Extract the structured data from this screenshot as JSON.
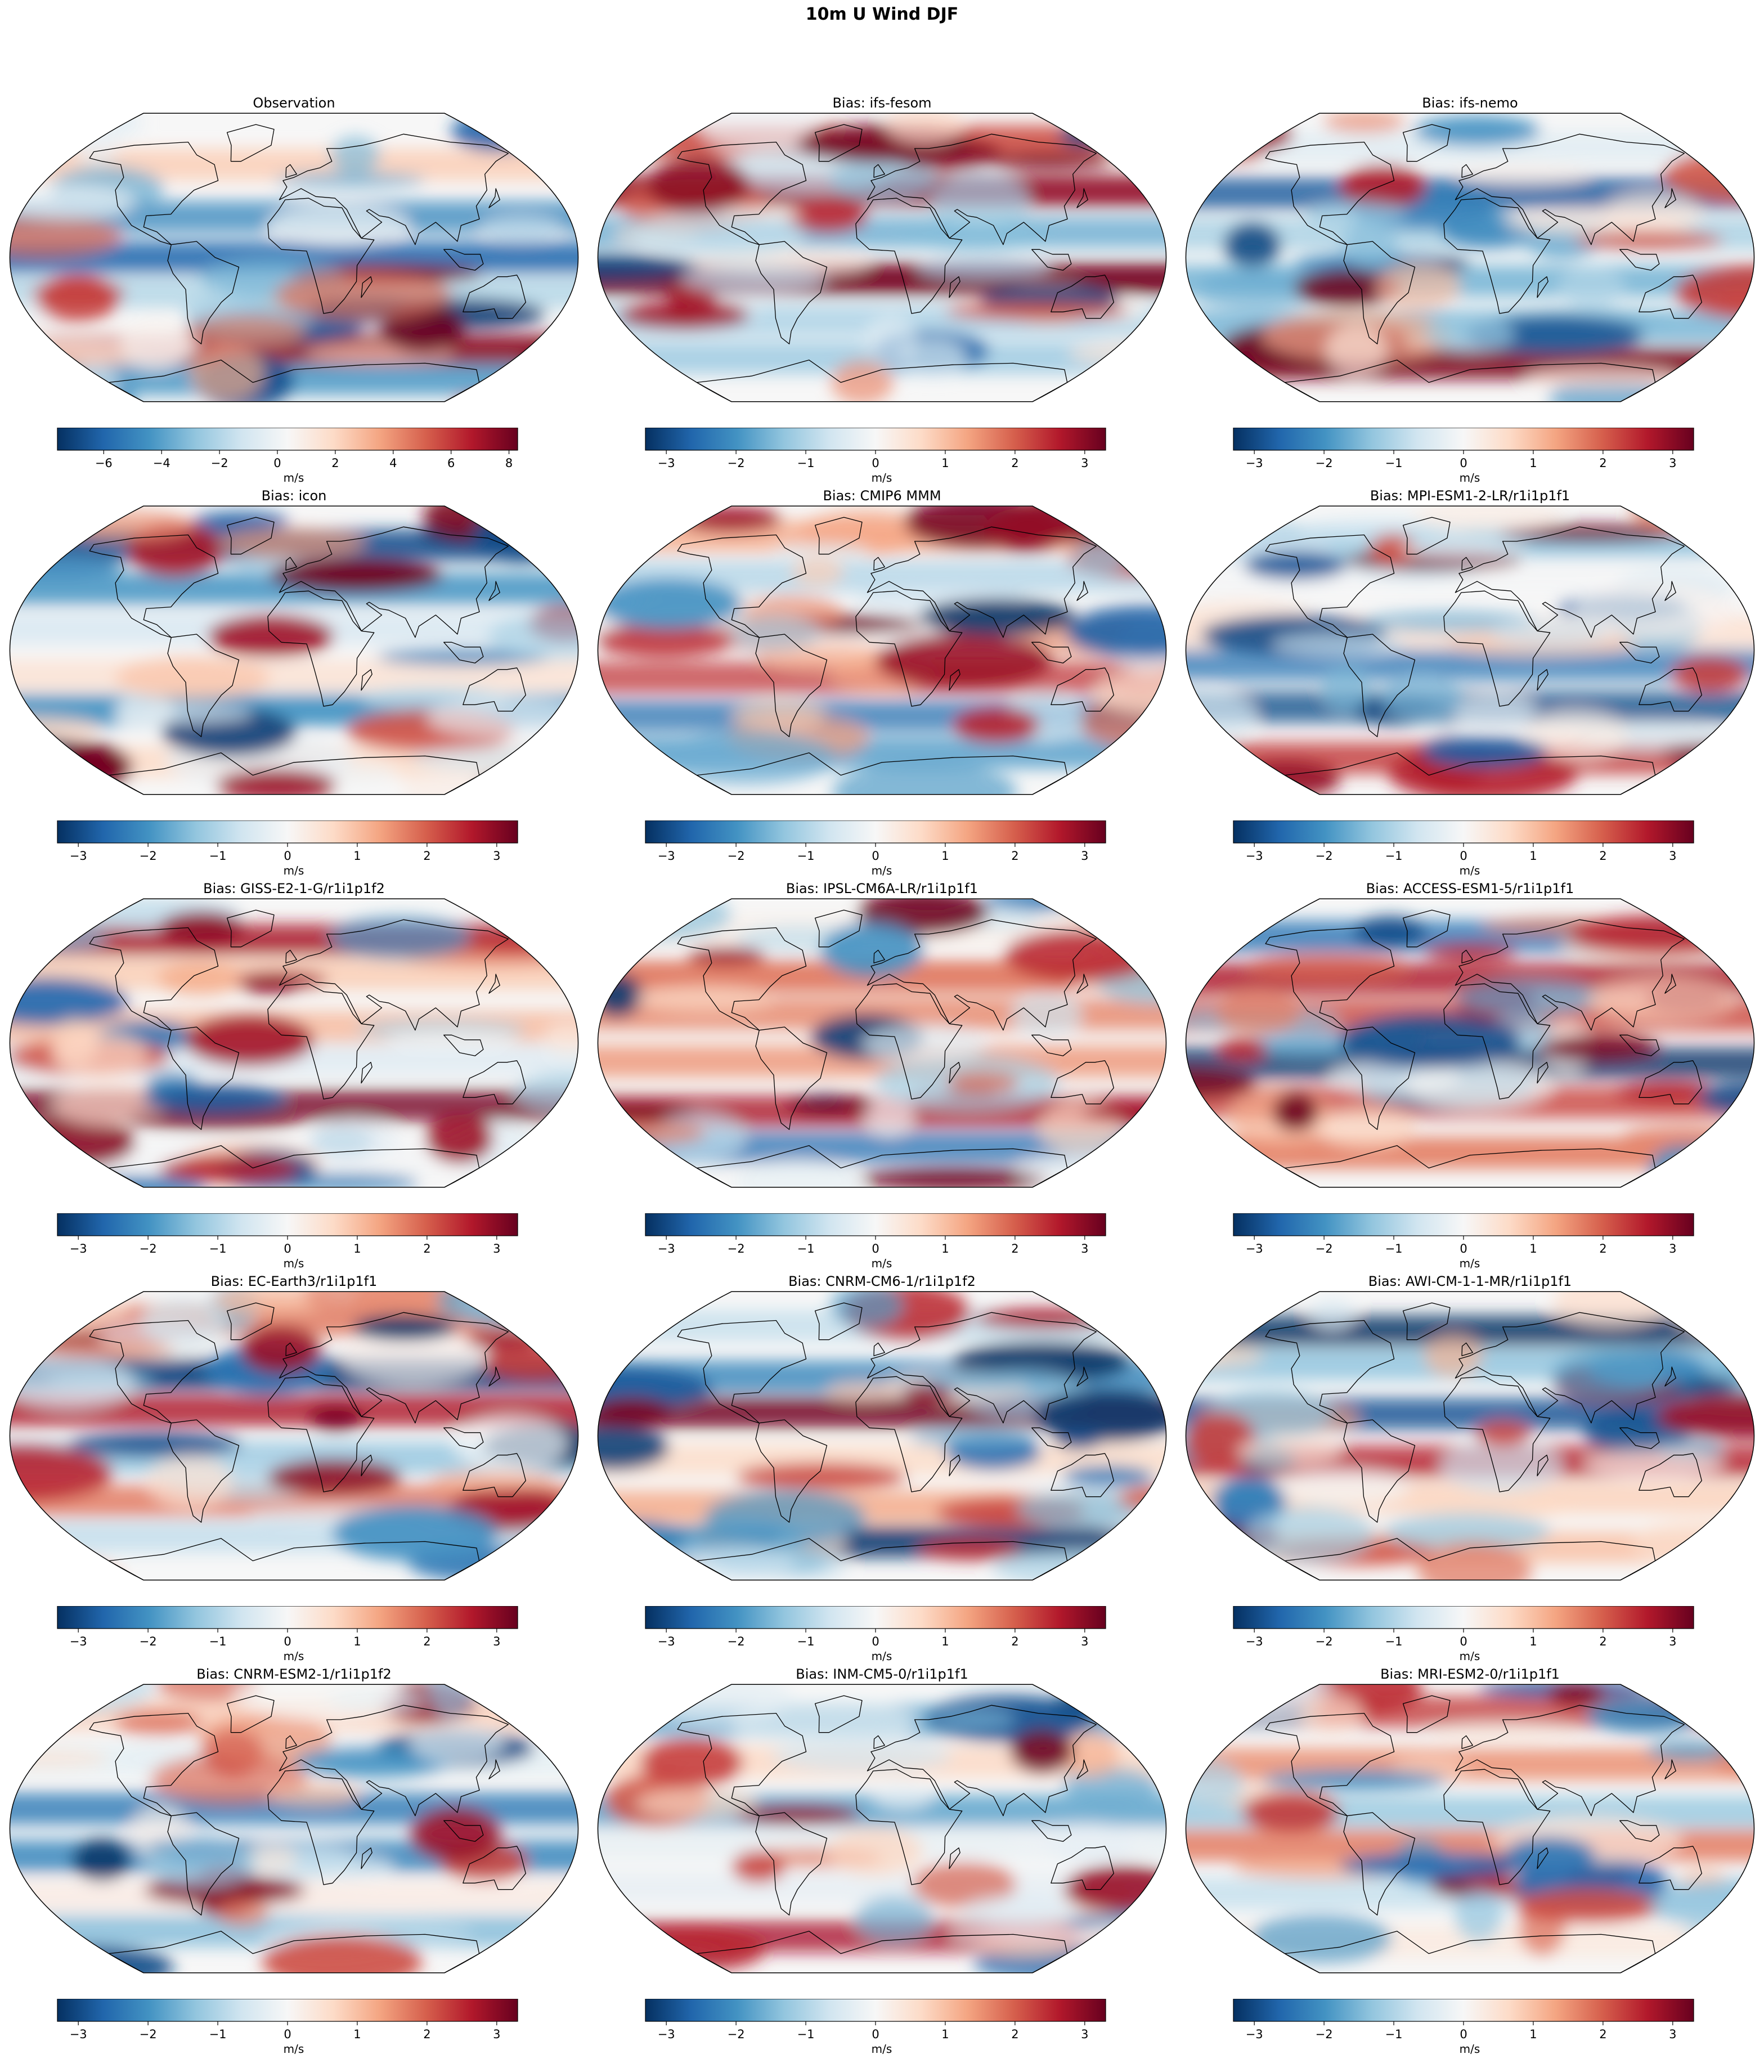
{
  "figure": {
    "title": "10m U Wind DJF"
  },
  "colormap": {
    "name": "RdBu_r",
    "stops": [
      "#053061",
      "#2166ac",
      "#4393c3",
      "#92c5de",
      "#d1e5f0",
      "#f7f7f7",
      "#fddbc7",
      "#f4a582",
      "#d6604d",
      "#b2182b",
      "#67001f"
    ]
  },
  "coastline_color": "#000000",
  "panels": [
    {
      "title": "Observation",
      "colorbar": {
        "label": "m/s",
        "vmin": -7.6,
        "vmax": 8.3,
        "ticks": [
          -6,
          -4,
          -2,
          0,
          2,
          4,
          6,
          8
        ],
        "tick_labels": [
          "−6",
          "−4",
          "−2",
          "0",
          "2",
          "4",
          "6",
          "8"
        ]
      }
    },
    {
      "title": "Bias: ifs-fesom",
      "colorbar": {
        "label": "m/s",
        "vmin": -3.3,
        "vmax": 3.3,
        "ticks": [
          -3,
          -2,
          -1,
          0,
          1,
          2,
          3
        ],
        "tick_labels": [
          "−3",
          "−2",
          "−1",
          "0",
          "1",
          "2",
          "3"
        ]
      }
    },
    {
      "title": "Bias: ifs-nemo",
      "colorbar": {
        "label": "m/s",
        "vmin": -3.3,
        "vmax": 3.3,
        "ticks": [
          -3,
          -2,
          -1,
          0,
          1,
          2,
          3
        ],
        "tick_labels": [
          "−3",
          "−2",
          "−1",
          "0",
          "1",
          "2",
          "3"
        ]
      }
    },
    {
      "title": "Bias: icon",
      "colorbar": {
        "label": "m/s",
        "vmin": -3.3,
        "vmax": 3.3,
        "ticks": [
          -3,
          -2,
          -1,
          0,
          1,
          2,
          3
        ],
        "tick_labels": [
          "−3",
          "−2",
          "−1",
          "0",
          "1",
          "2",
          "3"
        ]
      }
    },
    {
      "title": "Bias: CMIP6 MMM",
      "colorbar": {
        "label": "m/s",
        "vmin": -3.3,
        "vmax": 3.3,
        "ticks": [
          -3,
          -2,
          -1,
          0,
          1,
          2,
          3
        ],
        "tick_labels": [
          "−3",
          "−2",
          "−1",
          "0",
          "1",
          "2",
          "3"
        ]
      }
    },
    {
      "title": "Bias: MPI-ESM1-2-LR/r1i1p1f1",
      "colorbar": {
        "label": "m/s",
        "vmin": -3.3,
        "vmax": 3.3,
        "ticks": [
          -3,
          -2,
          -1,
          0,
          1,
          2,
          3
        ],
        "tick_labels": [
          "−3",
          "−2",
          "−1",
          "0",
          "1",
          "2",
          "3"
        ]
      }
    },
    {
      "title": "Bias: GISS-E2-1-G/r1i1p1f2",
      "colorbar": {
        "label": "m/s",
        "vmin": -3.3,
        "vmax": 3.3,
        "ticks": [
          -3,
          -2,
          -1,
          0,
          1,
          2,
          3
        ],
        "tick_labels": [
          "−3",
          "−2",
          "−1",
          "0",
          "1",
          "2",
          "3"
        ]
      }
    },
    {
      "title": "Bias: IPSL-CM6A-LR/r1i1p1f1",
      "colorbar": {
        "label": "m/s",
        "vmin": -3.3,
        "vmax": 3.3,
        "ticks": [
          -3,
          -2,
          -1,
          0,
          1,
          2,
          3
        ],
        "tick_labels": [
          "−3",
          "−2",
          "−1",
          "0",
          "1",
          "2",
          "3"
        ]
      }
    },
    {
      "title": "Bias: ACCESS-ESM1-5/r1i1p1f1",
      "colorbar": {
        "label": "m/s",
        "vmin": -3.3,
        "vmax": 3.3,
        "ticks": [
          -3,
          -2,
          -1,
          0,
          1,
          2,
          3
        ],
        "tick_labels": [
          "−3",
          "−2",
          "−1",
          "0",
          "1",
          "2",
          "3"
        ]
      }
    },
    {
      "title": "Bias: EC-Earth3/r1i1p1f1",
      "colorbar": {
        "label": "m/s",
        "vmin": -3.3,
        "vmax": 3.3,
        "ticks": [
          -3,
          -2,
          -1,
          0,
          1,
          2,
          3
        ],
        "tick_labels": [
          "−3",
          "−2",
          "−1",
          "0",
          "1",
          "2",
          "3"
        ]
      }
    },
    {
      "title": "Bias: CNRM-CM6-1/r1i1p1f2",
      "colorbar": {
        "label": "m/s",
        "vmin": -3.3,
        "vmax": 3.3,
        "ticks": [
          -3,
          -2,
          -1,
          0,
          1,
          2,
          3
        ],
        "tick_labels": [
          "−3",
          "−2",
          "−1",
          "0",
          "1",
          "2",
          "3"
        ]
      }
    },
    {
      "title": "Bias: AWI-CM-1-1-MR/r1i1p1f1",
      "colorbar": {
        "label": "m/s",
        "vmin": -3.3,
        "vmax": 3.3,
        "ticks": [
          -3,
          -2,
          -1,
          0,
          1,
          2,
          3
        ],
        "tick_labels": [
          "−3",
          "−2",
          "−1",
          "0",
          "1",
          "2",
          "3"
        ]
      }
    },
    {
      "title": "Bias: CNRM-ESM2-1/r1i1p1f2",
      "colorbar": {
        "label": "m/s",
        "vmin": -3.3,
        "vmax": 3.3,
        "ticks": [
          -3,
          -2,
          -1,
          0,
          1,
          2,
          3
        ],
        "tick_labels": [
          "−3",
          "−2",
          "−1",
          "0",
          "1",
          "2",
          "3"
        ]
      }
    },
    {
      "title": "Bias: INM-CM5-0/r1i1p1f1",
      "colorbar": {
        "label": "m/s",
        "vmin": -3.3,
        "vmax": 3.3,
        "ticks": [
          -3,
          -2,
          -1,
          0,
          1,
          2,
          3
        ],
        "tick_labels": [
          "−3",
          "−2",
          "−1",
          "0",
          "1",
          "2",
          "3"
        ]
      }
    },
    {
      "title": "Bias: MRI-ESM2-0/r1i1p1f1",
      "colorbar": {
        "label": "m/s",
        "vmin": -3.3,
        "vmax": 3.3,
        "ticks": [
          -3,
          -2,
          -1,
          0,
          1,
          2,
          3
        ],
        "tick_labels": [
          "−3",
          "−2",
          "−1",
          "0",
          "1",
          "2",
          "3"
        ]
      }
    }
  ]
}
